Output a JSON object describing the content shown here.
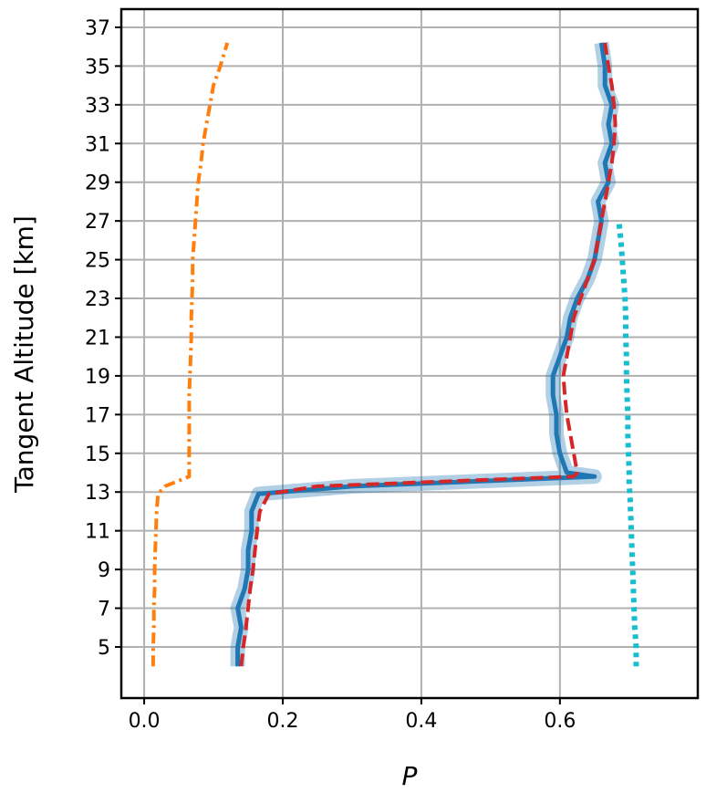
{
  "chart_data": {
    "type": "line",
    "orientation": "horizontal",
    "x_label": "P",
    "y_label": "Tangent Altitude [km]",
    "xlim": [
      -0.033,
      0.799
    ],
    "xticks": [
      {
        "value": 0,
        "label": "0.0"
      },
      0.2,
      0.4,
      0.6
    ],
    "ylim": [
      2.36,
      37.94
    ],
    "yticks": [
      5,
      7,
      9,
      11,
      13,
      15,
      17,
      19,
      21,
      23,
      25,
      27,
      29,
      31,
      33,
      35,
      37
    ],
    "grid": true,
    "y": [
      4,
      5,
      6,
      7,
      8,
      9,
      10,
      11,
      12,
      12.9,
      13.3,
      13.8,
      14,
      15,
      16,
      17,
      18,
      19,
      20,
      21,
      22,
      23,
      24,
      25,
      26,
      27,
      28,
      29,
      30,
      31,
      32,
      33,
      34,
      35,
      36.2
    ],
    "series": [
      {
        "color": "#ff7f0e",
        "linestyle": "dashdot",
        "values": [
          0.013,
          0.013,
          0.014,
          0.014,
          0.015,
          0.015,
          0.016,
          0.017,
          0.018,
          0.02,
          0.03,
          0.065,
          0.065,
          0.065,
          0.065,
          0.065,
          0.065,
          0.066,
          0.067,
          0.068,
          0.068,
          0.069,
          0.07,
          0.07,
          0.072,
          0.074,
          0.076,
          0.078,
          0.082,
          0.085,
          0.09,
          0.095,
          0.1,
          0.11,
          0.12
        ]
      },
      {
        "color": "#1f77b4",
        "linestyle": "solid",
        "values": [
          0.135,
          0.135,
          0.14,
          0.135,
          0.145,
          0.15,
          0.15,
          0.155,
          0.155,
          0.165,
          0.3,
          0.65,
          0.61,
          0.6,
          0.595,
          0.595,
          0.59,
          0.59,
          0.6,
          0.61,
          0.615,
          0.625,
          0.64,
          0.65,
          0.655,
          0.66,
          0.655,
          0.67,
          0.665,
          0.675,
          0.67,
          0.675,
          0.665,
          0.665,
          0.66
        ]
      },
      {
        "color": "#d62728",
        "linestyle": "dashed",
        "values": [
          0.14,
          0.143,
          0.147,
          0.15,
          0.153,
          0.157,
          0.16,
          0.163,
          0.167,
          0.18,
          0.25,
          0.62,
          0.625,
          0.62,
          0.615,
          0.61,
          0.607,
          0.605,
          0.61,
          0.615,
          0.62,
          0.63,
          0.64,
          0.65,
          0.655,
          0.66,
          0.665,
          0.67,
          0.675,
          0.678,
          0.68,
          0.678,
          0.675,
          0.67,
          0.665
        ]
      },
      {
        "color": "#17becf",
        "linestyle": "dotted",
        "values": [
          0.71,
          0.71,
          0.708,
          0.707,
          0.706,
          0.705,
          0.704,
          0.703,
          0.702,
          0.701,
          0.7,
          0.7,
          0.7,
          0.699,
          0.698,
          0.698,
          0.697,
          0.696,
          0.696,
          0.695,
          0.695,
          0.694,
          0.692,
          0.69,
          0.688,
          0.685,
          null,
          null,
          null,
          null,
          null,
          null,
          null,
          null,
          null
        ]
      }
    ]
  }
}
